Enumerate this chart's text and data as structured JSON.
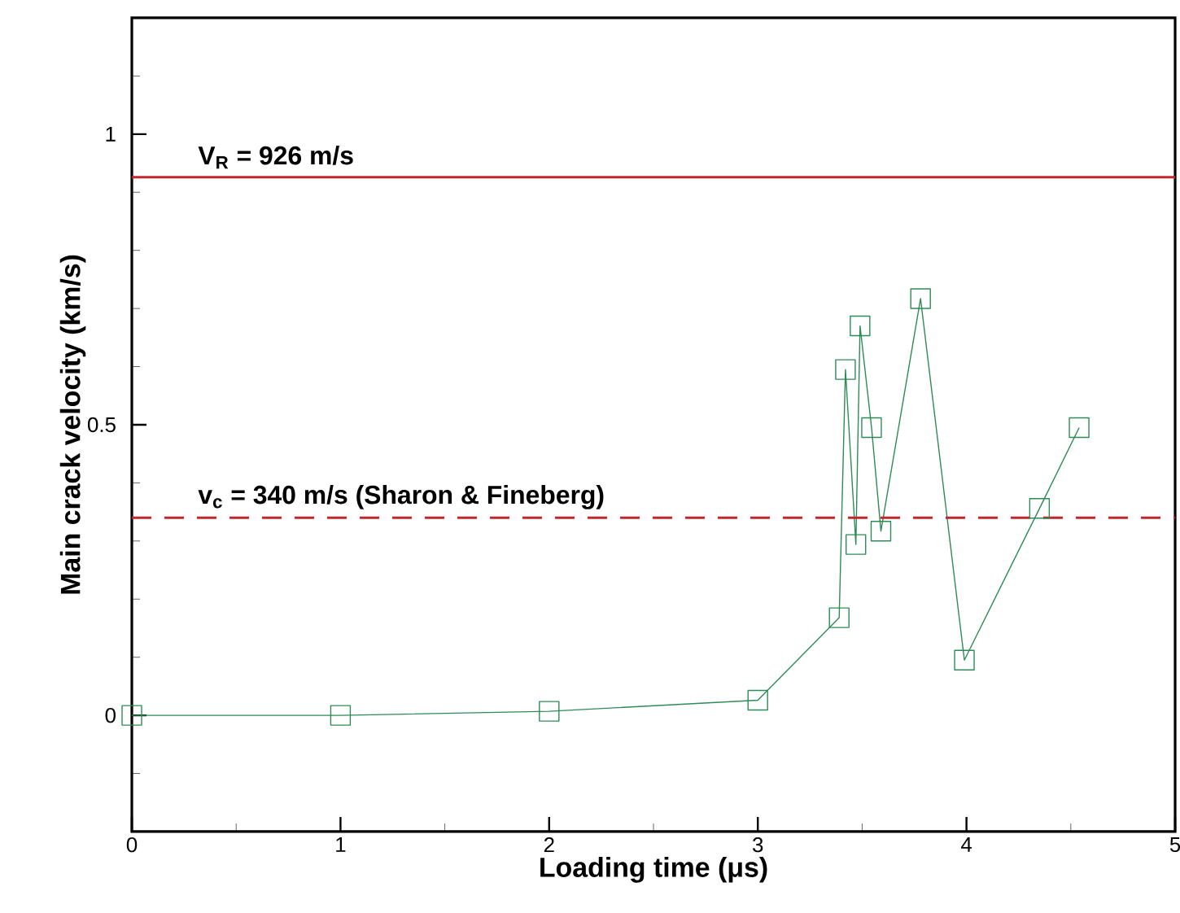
{
  "chart_data": {
    "type": "line",
    "xlabel": "Loading time (μs)",
    "ylabel": "Main crack velocity (km/s)",
    "xlim": [
      0,
      5
    ],
    "ylim": [
      -0.2,
      1.2
    ],
    "xticks": [
      0,
      {
        "value": 0.5,
        "label": null
      },
      1,
      {
        "value": 1.5,
        "label": null
      },
      2,
      {
        "value": 2.5,
        "label": null
      },
      3,
      {
        "value": 3.5,
        "label": null
      },
      4,
      {
        "value": 4.5,
        "label": null
      },
      5
    ],
    "yticks": [
      {
        "value": -0.1,
        "label": null
      },
      0,
      {
        "value": 0.1,
        "label": null
      },
      {
        "value": 0.2,
        "label": null
      },
      {
        "value": 0.3,
        "label": null
      },
      {
        "value": 0.4,
        "label": null
      },
      0.5,
      {
        "value": 0.6,
        "label": null
      },
      {
        "value": 0.7,
        "label": null
      },
      {
        "value": 0.8,
        "label": null
      },
      {
        "value": 0.9,
        "label": null
      },
      1,
      {
        "value": 1.1,
        "label": null
      }
    ],
    "series": [
      {
        "color": "#2e8b57",
        "x": [
          0,
          1,
          2,
          3,
          3.39,
          3.42,
          3.47,
          3.49,
          3.545,
          3.59,
          3.78,
          3.99,
          4.35,
          4.54
        ],
        "values": [
          0,
          0,
          0.007,
          0.026,
          0.168,
          0.595,
          0.294,
          0.67,
          0.495,
          0.317,
          0.717,
          0.095,
          0.356,
          0.495
        ]
      }
    ],
    "marker": "square",
    "line_style": "solid",
    "ref_lines": [
      {
        "axis": "y",
        "value": 0.926,
        "label": "V$_{R}$ = 926 m/s",
        "color": "#c0282d",
        "line_style": "solid"
      },
      {
        "axis": "y",
        "value": 0.34,
        "label": "v$_{c}$ = 340 m/s  (Sharon & Fineberg)",
        "color": "#c0282d",
        "line_style": "dashed"
      }
    ]
  }
}
